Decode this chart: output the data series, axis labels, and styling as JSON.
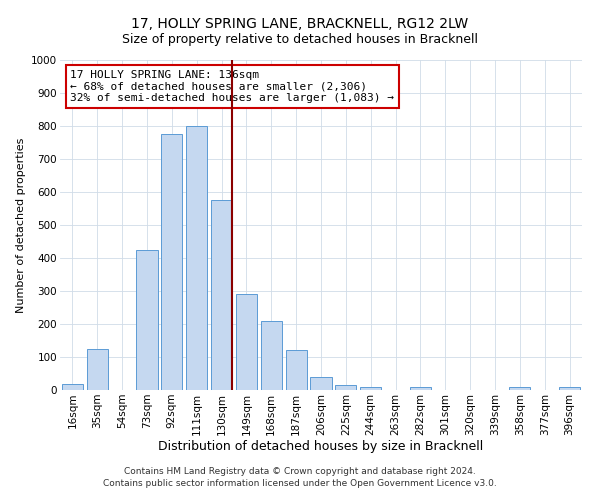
{
  "title": "17, HOLLY SPRING LANE, BRACKNELL, RG12 2LW",
  "subtitle": "Size of property relative to detached houses in Bracknell",
  "xlabel": "Distribution of detached houses by size in Bracknell",
  "ylabel": "Number of detached properties",
  "bar_labels": [
    "16sqm",
    "35sqm",
    "54sqm",
    "73sqm",
    "92sqm",
    "111sqm",
    "130sqm",
    "149sqm",
    "168sqm",
    "187sqm",
    "206sqm",
    "225sqm",
    "244sqm",
    "263sqm",
    "282sqm",
    "301sqm",
    "320sqm",
    "339sqm",
    "358sqm",
    "377sqm",
    "396sqm"
  ],
  "bar_values": [
    18,
    125,
    0,
    425,
    775,
    800,
    575,
    290,
    210,
    120,
    40,
    15,
    10,
    0,
    10,
    0,
    0,
    0,
    10,
    0,
    10
  ],
  "bar_color": "#c5d8f0",
  "bar_edge_color": "#5b9bd5",
  "vline_color": "#8b0000",
  "ylim": [
    0,
    1000
  ],
  "yticks": [
    0,
    100,
    200,
    300,
    400,
    500,
    600,
    700,
    800,
    900,
    1000
  ],
  "annotation_title": "17 HOLLY SPRING LANE: 136sqm",
  "annotation_line1": "← 68% of detached houses are smaller (2,306)",
  "annotation_line2": "32% of semi-detached houses are larger (1,083) →",
  "annotation_box_color": "#ffffff",
  "annotation_box_edge_color": "#cc0000",
  "footer_line1": "Contains HM Land Registry data © Crown copyright and database right 2024.",
  "footer_line2": "Contains public sector information licensed under the Open Government Licence v3.0.",
  "bg_color": "#ffffff",
  "grid_color": "#d0dce8",
  "title_fontsize": 10,
  "subtitle_fontsize": 9,
  "xlabel_fontsize": 9,
  "ylabel_fontsize": 8,
  "tick_fontsize": 7.5,
  "annotation_fontsize": 8,
  "footer_fontsize": 6.5
}
